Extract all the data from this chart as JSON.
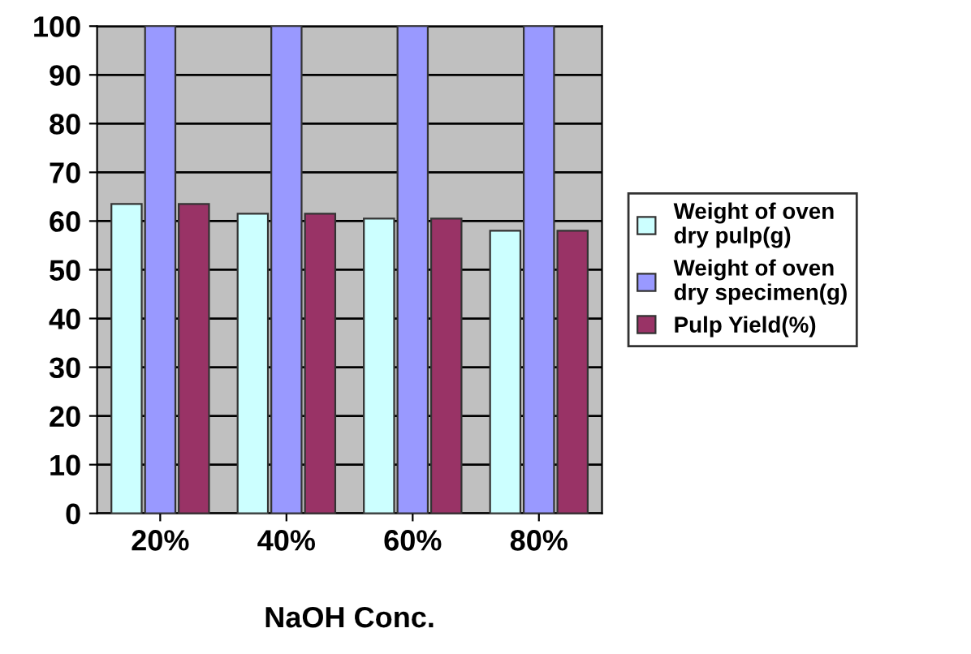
{
  "chart_data": {
    "type": "bar",
    "xlabel": "NaOH Conc.",
    "categories": [
      "20%",
      "40%",
      "60%",
      "80%"
    ],
    "series": [
      {
        "name": "Weight of oven dry pulp(g)",
        "color": "#ccffff",
        "values": [
          63.5,
          61.5,
          60.5,
          58
        ]
      },
      {
        "name": "Weight of oven dry specimen(g)",
        "color": "#9999ff",
        "values": [
          100,
          100,
          100,
          100
        ]
      },
      {
        "name": "Pulp Yield(%)",
        "color": "#993366",
        "values": [
          63.5,
          61.5,
          60.5,
          58
        ]
      }
    ],
    "ylim": [
      0,
      100
    ],
    "yticks": [
      0,
      10,
      20,
      30,
      40,
      50,
      60,
      70,
      80,
      90,
      100
    ],
    "grid": "y",
    "legend": "right"
  }
}
